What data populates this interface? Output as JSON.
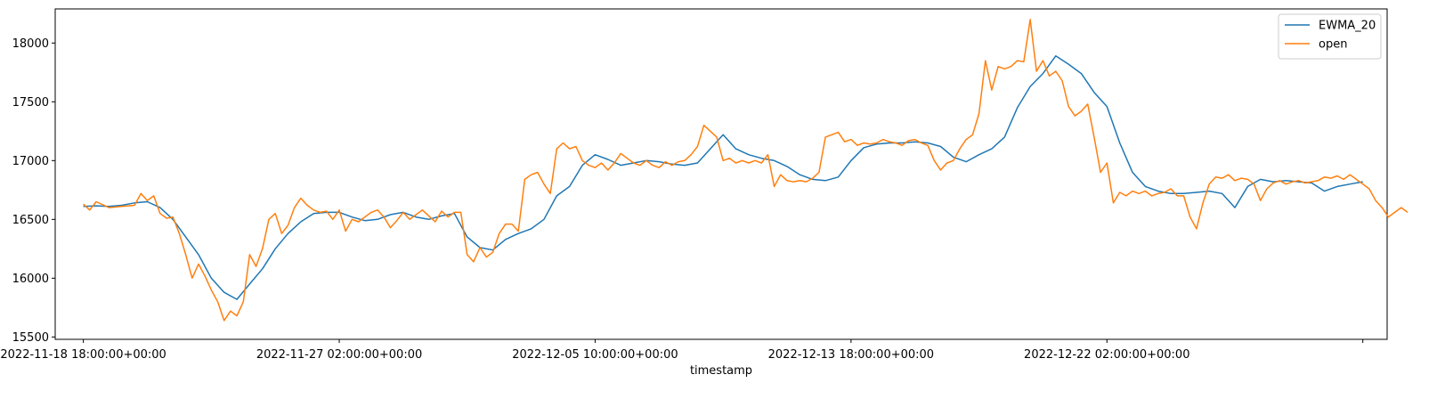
{
  "chart_data": {
    "type": "line",
    "xlabel": "timestamp",
    "ylabel": "",
    "title": "",
    "ylim": [
      15480,
      18290
    ],
    "xlim": [
      -22,
      1019
    ],
    "x_ticks": [
      {
        "x": 0,
        "label": "2022-11-18 18:00:00+00:00"
      },
      {
        "x": 200,
        "label": "2022-11-27 02:00:00+00:00"
      },
      {
        "x": 400,
        "label": "2022-12-05 10:00:00+00:00"
      },
      {
        "x": 600,
        "label": "2022-12-13 18:00:00+00:00"
      },
      {
        "x": 800,
        "label": "2022-12-22 02:00:00+00:00"
      },
      {
        "x": 1000,
        "label": ""
      }
    ],
    "y_ticks": [
      15500,
      16000,
      16500,
      17000,
      17500,
      18000
    ],
    "grid": false,
    "legend": "top-right",
    "series": [
      {
        "name": "EWMA_20",
        "color": "#1f77b4",
        "points": [
          [
            0,
            16610
          ],
          [
            10,
            16615
          ],
          [
            20,
            16610
          ],
          [
            30,
            16620
          ],
          [
            40,
            16640
          ],
          [
            50,
            16650
          ],
          [
            60,
            16600
          ],
          [
            70,
            16500
          ],
          [
            80,
            16350
          ],
          [
            90,
            16200
          ],
          [
            100,
            16000
          ],
          [
            110,
            15880
          ],
          [
            120,
            15820
          ],
          [
            130,
            15950
          ],
          [
            140,
            16080
          ],
          [
            150,
            16250
          ],
          [
            160,
            16380
          ],
          [
            170,
            16480
          ],
          [
            180,
            16550
          ],
          [
            190,
            16560
          ],
          [
            200,
            16560
          ],
          [
            210,
            16520
          ],
          [
            220,
            16490
          ],
          [
            230,
            16500
          ],
          [
            240,
            16540
          ],
          [
            250,
            16560
          ],
          [
            260,
            16520
          ],
          [
            270,
            16500
          ],
          [
            280,
            16530
          ],
          [
            290,
            16550
          ],
          [
            300,
            16350
          ],
          [
            310,
            16260
          ],
          [
            320,
            16240
          ],
          [
            330,
            16330
          ],
          [
            340,
            16380
          ],
          [
            350,
            16420
          ],
          [
            360,
            16500
          ],
          [
            370,
            16700
          ],
          [
            380,
            16780
          ],
          [
            390,
            16960
          ],
          [
            400,
            17050
          ],
          [
            410,
            17010
          ],
          [
            420,
            16960
          ],
          [
            430,
            16980
          ],
          [
            440,
            17000
          ],
          [
            450,
            16990
          ],
          [
            460,
            16970
          ],
          [
            470,
            16960
          ],
          [
            480,
            16980
          ],
          [
            490,
            17100
          ],
          [
            500,
            17220
          ],
          [
            510,
            17100
          ],
          [
            520,
            17050
          ],
          [
            530,
            17020
          ],
          [
            540,
            17000
          ],
          [
            550,
            16950
          ],
          [
            560,
            16880
          ],
          [
            570,
            16840
          ],
          [
            580,
            16830
          ],
          [
            590,
            16860
          ],
          [
            600,
            17000
          ],
          [
            610,
            17110
          ],
          [
            620,
            17140
          ],
          [
            630,
            17150
          ],
          [
            640,
            17150
          ],
          [
            650,
            17160
          ],
          [
            660,
            17150
          ],
          [
            670,
            17120
          ],
          [
            680,
            17030
          ],
          [
            690,
            16990
          ],
          [
            700,
            17050
          ],
          [
            710,
            17100
          ],
          [
            720,
            17200
          ],
          [
            730,
            17450
          ],
          [
            740,
            17630
          ],
          [
            750,
            17740
          ],
          [
            760,
            17890
          ],
          [
            770,
            17820
          ],
          [
            780,
            17740
          ],
          [
            790,
            17580
          ],
          [
            800,
            17460
          ],
          [
            810,
            17150
          ],
          [
            820,
            16900
          ],
          [
            830,
            16780
          ],
          [
            840,
            16740
          ],
          [
            850,
            16720
          ],
          [
            860,
            16720
          ],
          [
            870,
            16730
          ],
          [
            880,
            16740
          ],
          [
            890,
            16720
          ],
          [
            900,
            16600
          ],
          [
            910,
            16780
          ],
          [
            920,
            16840
          ],
          [
            930,
            16820
          ],
          [
            940,
            16830
          ],
          [
            950,
            16820
          ],
          [
            960,
            16810
          ],
          [
            970,
            16740
          ],
          [
            980,
            16780
          ],
          [
            990,
            16800
          ],
          [
            1000,
            16820
          ]
        ]
      },
      {
        "name": "open",
        "color": "#ff7f0e",
        "points": [
          [
            0,
            16630
          ],
          [
            5,
            16580
          ],
          [
            10,
            16650
          ],
          [
            20,
            16600
          ],
          [
            30,
            16610
          ],
          [
            40,
            16620
          ],
          [
            45,
            16720
          ],
          [
            50,
            16660
          ],
          [
            55,
            16700
          ],
          [
            60,
            16550
          ],
          [
            65,
            16510
          ],
          [
            70,
            16520
          ],
          [
            75,
            16380
          ],
          [
            80,
            16200
          ],
          [
            85,
            16000
          ],
          [
            90,
            16120
          ],
          [
            95,
            16020
          ],
          [
            100,
            15900
          ],
          [
            105,
            15800
          ],
          [
            110,
            15640
          ],
          [
            115,
            15720
          ],
          [
            120,
            15680
          ],
          [
            125,
            15800
          ],
          [
            130,
            16200
          ],
          [
            135,
            16100
          ],
          [
            140,
            16250
          ],
          [
            145,
            16500
          ],
          [
            150,
            16550
          ],
          [
            155,
            16380
          ],
          [
            160,
            16450
          ],
          [
            165,
            16600
          ],
          [
            170,
            16680
          ],
          [
            175,
            16620
          ],
          [
            180,
            16580
          ],
          [
            185,
            16560
          ],
          [
            190,
            16570
          ],
          [
            195,
            16500
          ],
          [
            200,
            16580
          ],
          [
            205,
            16400
          ],
          [
            210,
            16500
          ],
          [
            215,
            16480
          ],
          [
            220,
            16520
          ],
          [
            225,
            16560
          ],
          [
            230,
            16580
          ],
          [
            235,
            16520
          ],
          [
            240,
            16430
          ],
          [
            245,
            16490
          ],
          [
            250,
            16560
          ],
          [
            255,
            16500
          ],
          [
            260,
            16540
          ],
          [
            265,
            16580
          ],
          [
            270,
            16530
          ],
          [
            275,
            16480
          ],
          [
            280,
            16570
          ],
          [
            285,
            16520
          ],
          [
            290,
            16560
          ],
          [
            295,
            16560
          ],
          [
            300,
            16200
          ],
          [
            305,
            16140
          ],
          [
            310,
            16260
          ],
          [
            315,
            16180
          ],
          [
            320,
            16220
          ],
          [
            325,
            16380
          ],
          [
            330,
            16460
          ],
          [
            335,
            16460
          ],
          [
            340,
            16400
          ],
          [
            345,
            16840
          ],
          [
            350,
            16880
          ],
          [
            355,
            16900
          ],
          [
            360,
            16800
          ],
          [
            365,
            16720
          ],
          [
            370,
            17100
          ],
          [
            375,
            17150
          ],
          [
            380,
            17100
          ],
          [
            385,
            17120
          ],
          [
            390,
            17000
          ],
          [
            395,
            16960
          ],
          [
            400,
            16940
          ],
          [
            405,
            16980
          ],
          [
            410,
            16920
          ],
          [
            415,
            16980
          ],
          [
            420,
            17060
          ],
          [
            425,
            17020
          ],
          [
            430,
            16980
          ],
          [
            435,
            16960
          ],
          [
            440,
            17000
          ],
          [
            445,
            16960
          ],
          [
            450,
            16940
          ],
          [
            455,
            16990
          ],
          [
            460,
            16960
          ],
          [
            465,
            16990
          ],
          [
            470,
            17000
          ],
          [
            475,
            17050
          ],
          [
            480,
            17120
          ],
          [
            485,
            17300
          ],
          [
            490,
            17250
          ],
          [
            495,
            17200
          ],
          [
            500,
            17000
          ],
          [
            505,
            17020
          ],
          [
            510,
            16980
          ],
          [
            515,
            17000
          ],
          [
            520,
            16980
          ],
          [
            525,
            17000
          ],
          [
            530,
            16980
          ],
          [
            535,
            17050
          ],
          [
            540,
            16780
          ],
          [
            545,
            16880
          ],
          [
            550,
            16830
          ],
          [
            555,
            16820
          ],
          [
            560,
            16830
          ],
          [
            565,
            16820
          ],
          [
            570,
            16850
          ],
          [
            575,
            16900
          ],
          [
            580,
            17200
          ],
          [
            585,
            17220
          ],
          [
            590,
            17240
          ],
          [
            595,
            17160
          ],
          [
            600,
            17180
          ],
          [
            605,
            17130
          ],
          [
            610,
            17150
          ],
          [
            615,
            17140
          ],
          [
            620,
            17150
          ],
          [
            625,
            17180
          ],
          [
            630,
            17160
          ],
          [
            635,
            17150
          ],
          [
            640,
            17130
          ],
          [
            645,
            17170
          ],
          [
            650,
            17180
          ],
          [
            655,
            17150
          ],
          [
            660,
            17130
          ],
          [
            665,
            17000
          ],
          [
            670,
            16920
          ],
          [
            675,
            16980
          ],
          [
            680,
            17000
          ],
          [
            685,
            17100
          ],
          [
            690,
            17180
          ],
          [
            695,
            17220
          ],
          [
            700,
            17400
          ],
          [
            705,
            17850
          ],
          [
            710,
            17600
          ],
          [
            715,
            17800
          ],
          [
            720,
            17780
          ],
          [
            725,
            17800
          ],
          [
            730,
            17850
          ],
          [
            735,
            17840
          ],
          [
            740,
            18200
          ],
          [
            745,
            17760
          ],
          [
            750,
            17850
          ],
          [
            755,
            17720
          ],
          [
            760,
            17760
          ],
          [
            765,
            17680
          ],
          [
            770,
            17460
          ],
          [
            775,
            17380
          ],
          [
            780,
            17420
          ],
          [
            785,
            17480
          ],
          [
            790,
            17200
          ],
          [
            795,
            16900
          ],
          [
            800,
            16980
          ],
          [
            805,
            16640
          ],
          [
            810,
            16730
          ],
          [
            815,
            16700
          ],
          [
            820,
            16740
          ],
          [
            825,
            16720
          ],
          [
            830,
            16740
          ],
          [
            835,
            16700
          ],
          [
            840,
            16720
          ],
          [
            845,
            16730
          ],
          [
            850,
            16760
          ],
          [
            855,
            16700
          ],
          [
            860,
            16700
          ],
          [
            865,
            16520
          ],
          [
            870,
            16420
          ],
          [
            875,
            16640
          ],
          [
            880,
            16800
          ],
          [
            885,
            16860
          ],
          [
            890,
            16850
          ],
          [
            895,
            16880
          ],
          [
            900,
            16830
          ],
          [
            905,
            16850
          ],
          [
            910,
            16840
          ],
          [
            915,
            16800
          ],
          [
            920,
            16660
          ],
          [
            925,
            16760
          ],
          [
            930,
            16810
          ],
          [
            935,
            16830
          ],
          [
            940,
            16800
          ],
          [
            945,
            16820
          ],
          [
            950,
            16830
          ],
          [
            955,
            16810
          ],
          [
            960,
            16820
          ],
          [
            965,
            16830
          ],
          [
            970,
            16860
          ],
          [
            975,
            16850
          ],
          [
            980,
            16870
          ],
          [
            985,
            16840
          ],
          [
            990,
            16880
          ],
          [
            995,
            16840
          ],
          [
            1000,
            16800
          ],
          [
            1005,
            16760
          ],
          [
            1010,
            16660
          ],
          [
            1015,
            16600
          ],
          [
            1020,
            16520
          ],
          [
            1025,
            16560
          ],
          [
            1030,
            16600
          ],
          [
            1035,
            16560
          ]
        ]
      }
    ]
  }
}
